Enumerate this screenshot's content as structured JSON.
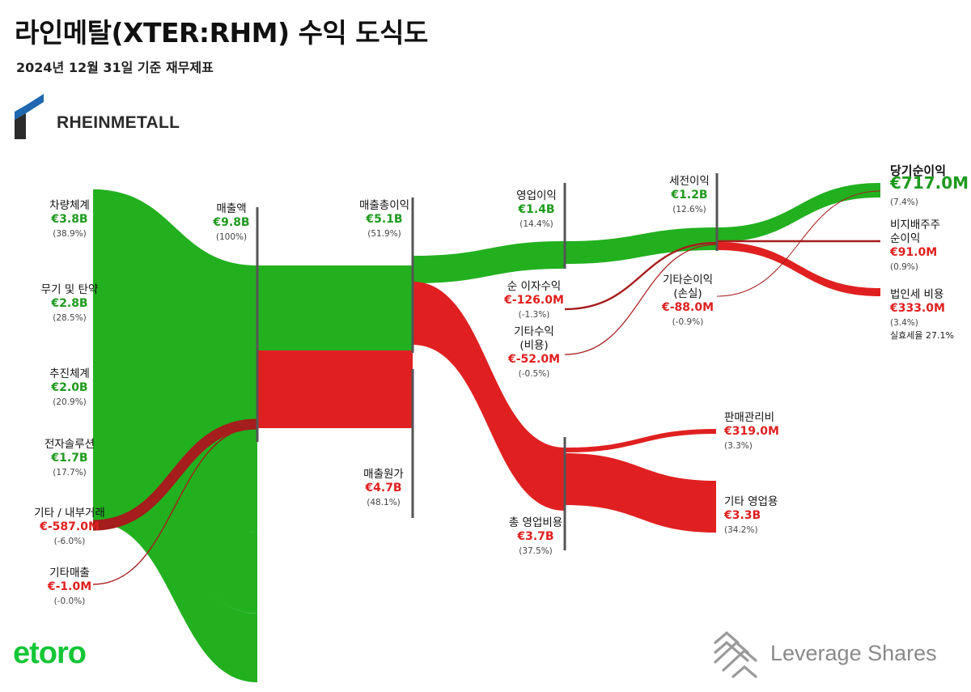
{
  "header": {
    "title": "라인메탈(XTER:RHM) 수익 도식도",
    "subtitle": "2024년 12월 31일 기준 재무제표"
  },
  "brand": {
    "company_logo_text": "RHEINMETALL",
    "footer_left": "etoro",
    "footer_right": "Leverage Shares"
  },
  "colors": {
    "positive": "#22b01f",
    "positive_text": "#1e9a1e",
    "negative": "#e02020",
    "negative_text": "#e02020",
    "dark_negative": "#a51d1d",
    "node_bar": "#555555"
  },
  "chart_data": {
    "type": "sankey",
    "currency": "EUR",
    "nodes": [
      {
        "id": "vehicle",
        "name": "차량체계",
        "value": "€3.8B",
        "pct": "(38.9%)",
        "sign": "positive"
      },
      {
        "id": "weapons",
        "name": "무기 및 탄약",
        "value": "€2.8B",
        "pct": "(28.5%)",
        "sign": "positive"
      },
      {
        "id": "propulsion",
        "name": "추진체계",
        "value": "€2.0B",
        "pct": "(20.9%)",
        "sign": "positive"
      },
      {
        "id": "electronic",
        "name": "전자솔루션",
        "value": "€1.7B",
        "pct": "(17.7%)",
        "sign": "positive"
      },
      {
        "id": "other_internal",
        "name": "기타 / 내부거래",
        "value": "€-587.0M",
        "pct": "(-6.0%)",
        "sign": "negative"
      },
      {
        "id": "other_sales",
        "name": "기타매출",
        "value": "€-1.0M",
        "pct": "(-0.0%)",
        "sign": "negative"
      },
      {
        "id": "revenue",
        "name": "매출액",
        "value": "€9.8B",
        "pct": "(100%)",
        "sign": "positive"
      },
      {
        "id": "gross_profit",
        "name": "매출총이익",
        "value": "€5.1B",
        "pct": "(51.9%)",
        "sign": "positive"
      },
      {
        "id": "cogs",
        "name": "매출원가",
        "value": "€4.7B",
        "pct": "(48.1%)",
        "sign": "negative"
      },
      {
        "id": "operating_income",
        "name": "영업이익",
        "value": "€1.4B",
        "pct": "(14.4%)",
        "sign": "positive"
      },
      {
        "id": "opex",
        "name": "총 영업비용",
        "value": "€3.7B",
        "pct": "(37.5%)",
        "sign": "negative"
      },
      {
        "id": "net_interest",
        "name": "순 이자수익",
        "value": "€-126.0M",
        "pct": "(-1.3%)",
        "sign": "negative"
      },
      {
        "id": "other_income",
        "name": "기타수익\n(비용)",
        "value": "€-52.0M",
        "pct": "(-0.5%)",
        "sign": "negative"
      },
      {
        "id": "pretax",
        "name": "세전이익",
        "value": "€1.2B",
        "pct": "(12.6%)",
        "sign": "positive"
      },
      {
        "id": "other_net",
        "name": "기타순이익\n(손실)",
        "value": "€-88.0M",
        "pct": "(-0.9%)",
        "sign": "negative"
      },
      {
        "id": "sga",
        "name": "판매관리비",
        "value": "€319.0M",
        "pct": "(3.3%)",
        "sign": "negative"
      },
      {
        "id": "other_opex",
        "name": "기타 영업용",
        "value": "€3.3B",
        "pct": "(34.2%)",
        "sign": "negative"
      },
      {
        "id": "net_income",
        "name": "당기순이익",
        "value": "€717.0M",
        "pct": "(7.4%)",
        "sign": "positive"
      },
      {
        "id": "minority",
        "name": "비지배주주\n순이익",
        "value": "€91.0M",
        "pct": "(0.9%)",
        "sign": "negative"
      },
      {
        "id": "tax",
        "name": "법인세 비용",
        "value": "€333.0M",
        "pct": "(3.4%)",
        "note": "실효세율 27.1%",
        "sign": "negative"
      }
    ],
    "links": [
      {
        "source": "vehicle",
        "target": "revenue",
        "value": 3.8
      },
      {
        "source": "weapons",
        "target": "revenue",
        "value": 2.8
      },
      {
        "source": "propulsion",
        "target": "revenue",
        "value": 2.0
      },
      {
        "source": "electronic",
        "target": "revenue",
        "value": 1.7
      },
      {
        "source": "other_internal",
        "target": "revenue",
        "value": -0.587
      },
      {
        "source": "other_sales",
        "target": "revenue",
        "value": -0.001
      },
      {
        "source": "revenue",
        "target": "gross_profit",
        "value": 5.1
      },
      {
        "source": "revenue",
        "target": "cogs",
        "value": 4.7
      },
      {
        "source": "gross_profit",
        "target": "operating_income",
        "value": 1.4
      },
      {
        "source": "gross_profit",
        "target": "opex",
        "value": 3.7
      },
      {
        "source": "opex",
        "target": "sga",
        "value": 0.319
      },
      {
        "source": "opex",
        "target": "other_opex",
        "value": 3.3
      },
      {
        "source": "operating_income",
        "target": "pretax",
        "value": 1.2
      },
      {
        "source": "net_interest",
        "target": "pretax",
        "value": -0.126
      },
      {
        "source": "other_income",
        "target": "pretax",
        "value": -0.052
      },
      {
        "source": "pretax",
        "target": "net_income",
        "value": 0.717
      },
      {
        "source": "pretax",
        "target": "minority",
        "value": 0.091
      },
      {
        "source": "pretax",
        "target": "tax",
        "value": 0.333
      },
      {
        "source": "other_net",
        "target": "net_income",
        "value": -0.088
      }
    ]
  }
}
